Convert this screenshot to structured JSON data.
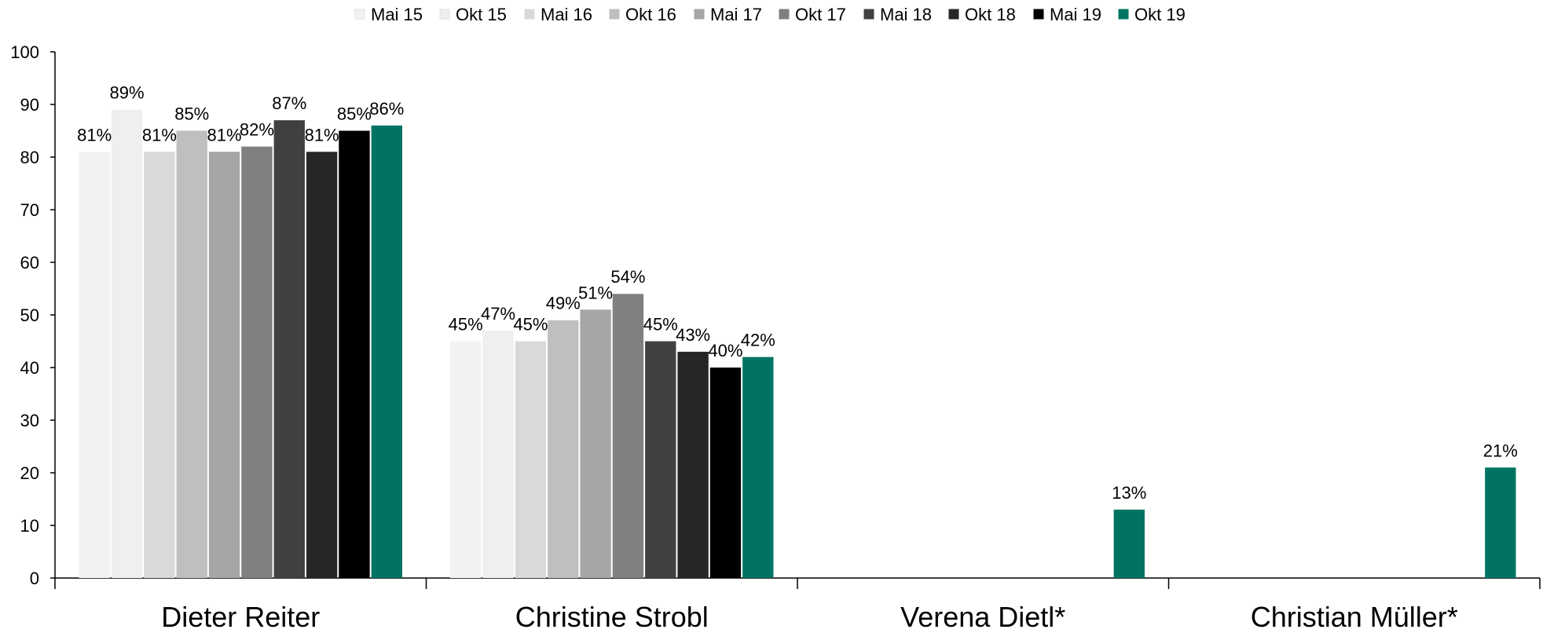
{
  "chart_data": {
    "type": "bar",
    "title": "",
    "xlabel": "",
    "ylabel": "",
    "ylim": [
      0,
      100
    ],
    "yticks": [
      "0",
      "10",
      "20",
      "30",
      "40",
      "50",
      "60",
      "70",
      "80",
      "90",
      "100"
    ],
    "grid": false,
    "legend_position": "top",
    "categories": [
      "Dieter Reiter",
      "Christine Strobl",
      "Verena Dietl*",
      "Christian Müller*"
    ],
    "series": [
      {
        "name": "Mai 15",
        "color": "#f2f2f2",
        "values": [
          81,
          45,
          null,
          null
        ],
        "labels": [
          "81%",
          "45%",
          "",
          ""
        ]
      },
      {
        "name": "Okt 15",
        "color": "#efefef",
        "values": [
          89,
          47,
          null,
          null
        ],
        "labels": [
          "89%",
          "47%",
          "",
          ""
        ]
      },
      {
        "name": "Mai 16",
        "color": "#d9d9d9",
        "values": [
          81,
          45,
          null,
          null
        ],
        "labels": [
          "81%",
          "45%",
          "",
          ""
        ]
      },
      {
        "name": "Okt 16",
        "color": "#bfbfbf",
        "values": [
          85,
          49,
          null,
          null
        ],
        "labels": [
          "85%",
          "49%",
          "",
          ""
        ]
      },
      {
        "name": "Mai 17",
        "color": "#a6a6a6",
        "values": [
          81,
          51,
          null,
          null
        ],
        "labels": [
          "81%",
          "51%",
          "",
          ""
        ]
      },
      {
        "name": "Okt 17",
        "color": "#808080",
        "values": [
          82,
          54,
          null,
          null
        ],
        "labels": [
          "82%",
          "54%",
          "",
          ""
        ]
      },
      {
        "name": "Mai 18",
        "color": "#404040",
        "values": [
          87,
          45,
          null,
          null
        ],
        "labels": [
          "87%",
          "45%",
          "",
          ""
        ]
      },
      {
        "name": "Okt 18",
        "color": "#262626",
        "values": [
          81,
          43,
          null,
          null
        ],
        "labels": [
          "81%",
          "43%",
          "",
          ""
        ]
      },
      {
        "name": "Mai 19",
        "color": "#000000",
        "values": [
          85,
          40,
          null,
          null
        ],
        "labels": [
          "85%",
          "40%",
          "",
          ""
        ]
      },
      {
        "name": "Okt 19",
        "color": "#007363",
        "values": [
          86,
          42,
          13,
          21
        ],
        "labels": [
          "86%",
          "42%",
          "13%",
          "21%"
        ]
      }
    ]
  }
}
